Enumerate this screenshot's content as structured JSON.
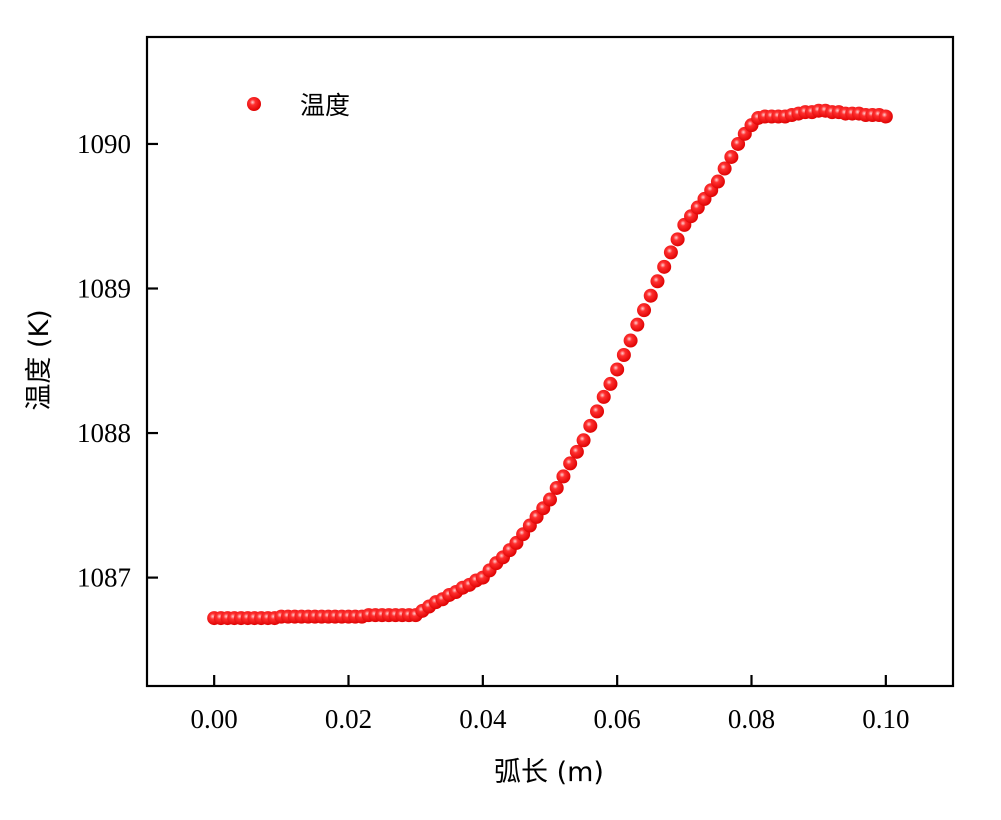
{
  "chart_data": {
    "type": "scatter",
    "title": "",
    "xlabel": "弧长 (m)",
    "ylabel": "温度 (K)",
    "xlim": [
      -0.01,
      0.11
    ],
    "ylim": [
      1086.25,
      1090.74
    ],
    "xticks": [
      0.0,
      0.02,
      0.04,
      0.06,
      0.08,
      0.1
    ],
    "xtick_labels": [
      "0.00",
      "0.02",
      "0.04",
      "0.06",
      "0.08",
      "0.10"
    ],
    "yticks": [
      1087,
      1088,
      1089,
      1090
    ],
    "ytick_labels": [
      "1087",
      "1088",
      "1089",
      "1090"
    ],
    "grid": false,
    "legend": {
      "position": "top-left",
      "entries": [
        "温度"
      ]
    },
    "series": [
      {
        "name": "温度",
        "color": "#ee0000",
        "marker": "sphere",
        "x": [
          0,
          0.001,
          0.002,
          0.003,
          0.004,
          0.005,
          0.006,
          0.007,
          0.008,
          0.009,
          0.01,
          0.011,
          0.012,
          0.013,
          0.014,
          0.015,
          0.016,
          0.017,
          0.018,
          0.019,
          0.02,
          0.021,
          0.022,
          0.023,
          0.024,
          0.025,
          0.026,
          0.027,
          0.028,
          0.029,
          0.03,
          0.031,
          0.032,
          0.033,
          0.034,
          0.035,
          0.036,
          0.037,
          0.038,
          0.039,
          0.04,
          0.041,
          0.042,
          0.043,
          0.044,
          0.045,
          0.046,
          0.047,
          0.048,
          0.049,
          0.05,
          0.051,
          0.052,
          0.053,
          0.054,
          0.055,
          0.056,
          0.057,
          0.058,
          0.059,
          0.06,
          0.061,
          0.062,
          0.063,
          0.064,
          0.065,
          0.066,
          0.067,
          0.068,
          0.069,
          0.07,
          0.071,
          0.072,
          0.073,
          0.074,
          0.075,
          0.076,
          0.077,
          0.078,
          0.079,
          0.08,
          0.081,
          0.082,
          0.083,
          0.084,
          0.085,
          0.086,
          0.087,
          0.088,
          0.089,
          0.09,
          0.091,
          0.092,
          0.093,
          0.094,
          0.095,
          0.096,
          0.097,
          0.098,
          0.099,
          0.1
        ],
        "y": [
          1086.72,
          1086.72,
          1086.72,
          1086.72,
          1086.72,
          1086.72,
          1086.72,
          1086.72,
          1086.72,
          1086.72,
          1086.73,
          1086.73,
          1086.73,
          1086.73,
          1086.73,
          1086.73,
          1086.73,
          1086.73,
          1086.73,
          1086.73,
          1086.73,
          1086.73,
          1086.73,
          1086.74,
          1086.74,
          1086.74,
          1086.74,
          1086.74,
          1086.74,
          1086.74,
          1086.74,
          1086.77,
          1086.8,
          1086.83,
          1086.85,
          1086.88,
          1086.9,
          1086.93,
          1086.95,
          1086.98,
          1087.0,
          1087.05,
          1087.1,
          1087.14,
          1087.19,
          1087.24,
          1087.3,
          1087.36,
          1087.42,
          1087.48,
          1087.54,
          1087.62,
          1087.7,
          1087.79,
          1087.87,
          1087.95,
          1088.05,
          1088.15,
          1088.25,
          1088.34,
          1088.44,
          1088.54,
          1088.64,
          1088.75,
          1088.85,
          1088.95,
          1089.05,
          1089.15,
          1089.25,
          1089.34,
          1089.44,
          1089.5,
          1089.56,
          1089.62,
          1089.68,
          1089.74,
          1089.83,
          1089.91,
          1090.0,
          1090.07,
          1090.13,
          1090.18,
          1090.19,
          1090.19,
          1090.19,
          1090.19,
          1090.2,
          1090.21,
          1090.22,
          1090.22,
          1090.23,
          1090.23,
          1090.22,
          1090.22,
          1090.21,
          1090.21,
          1090.21,
          1090.2,
          1090.2,
          1090.2,
          1090.19
        ]
      }
    ]
  }
}
